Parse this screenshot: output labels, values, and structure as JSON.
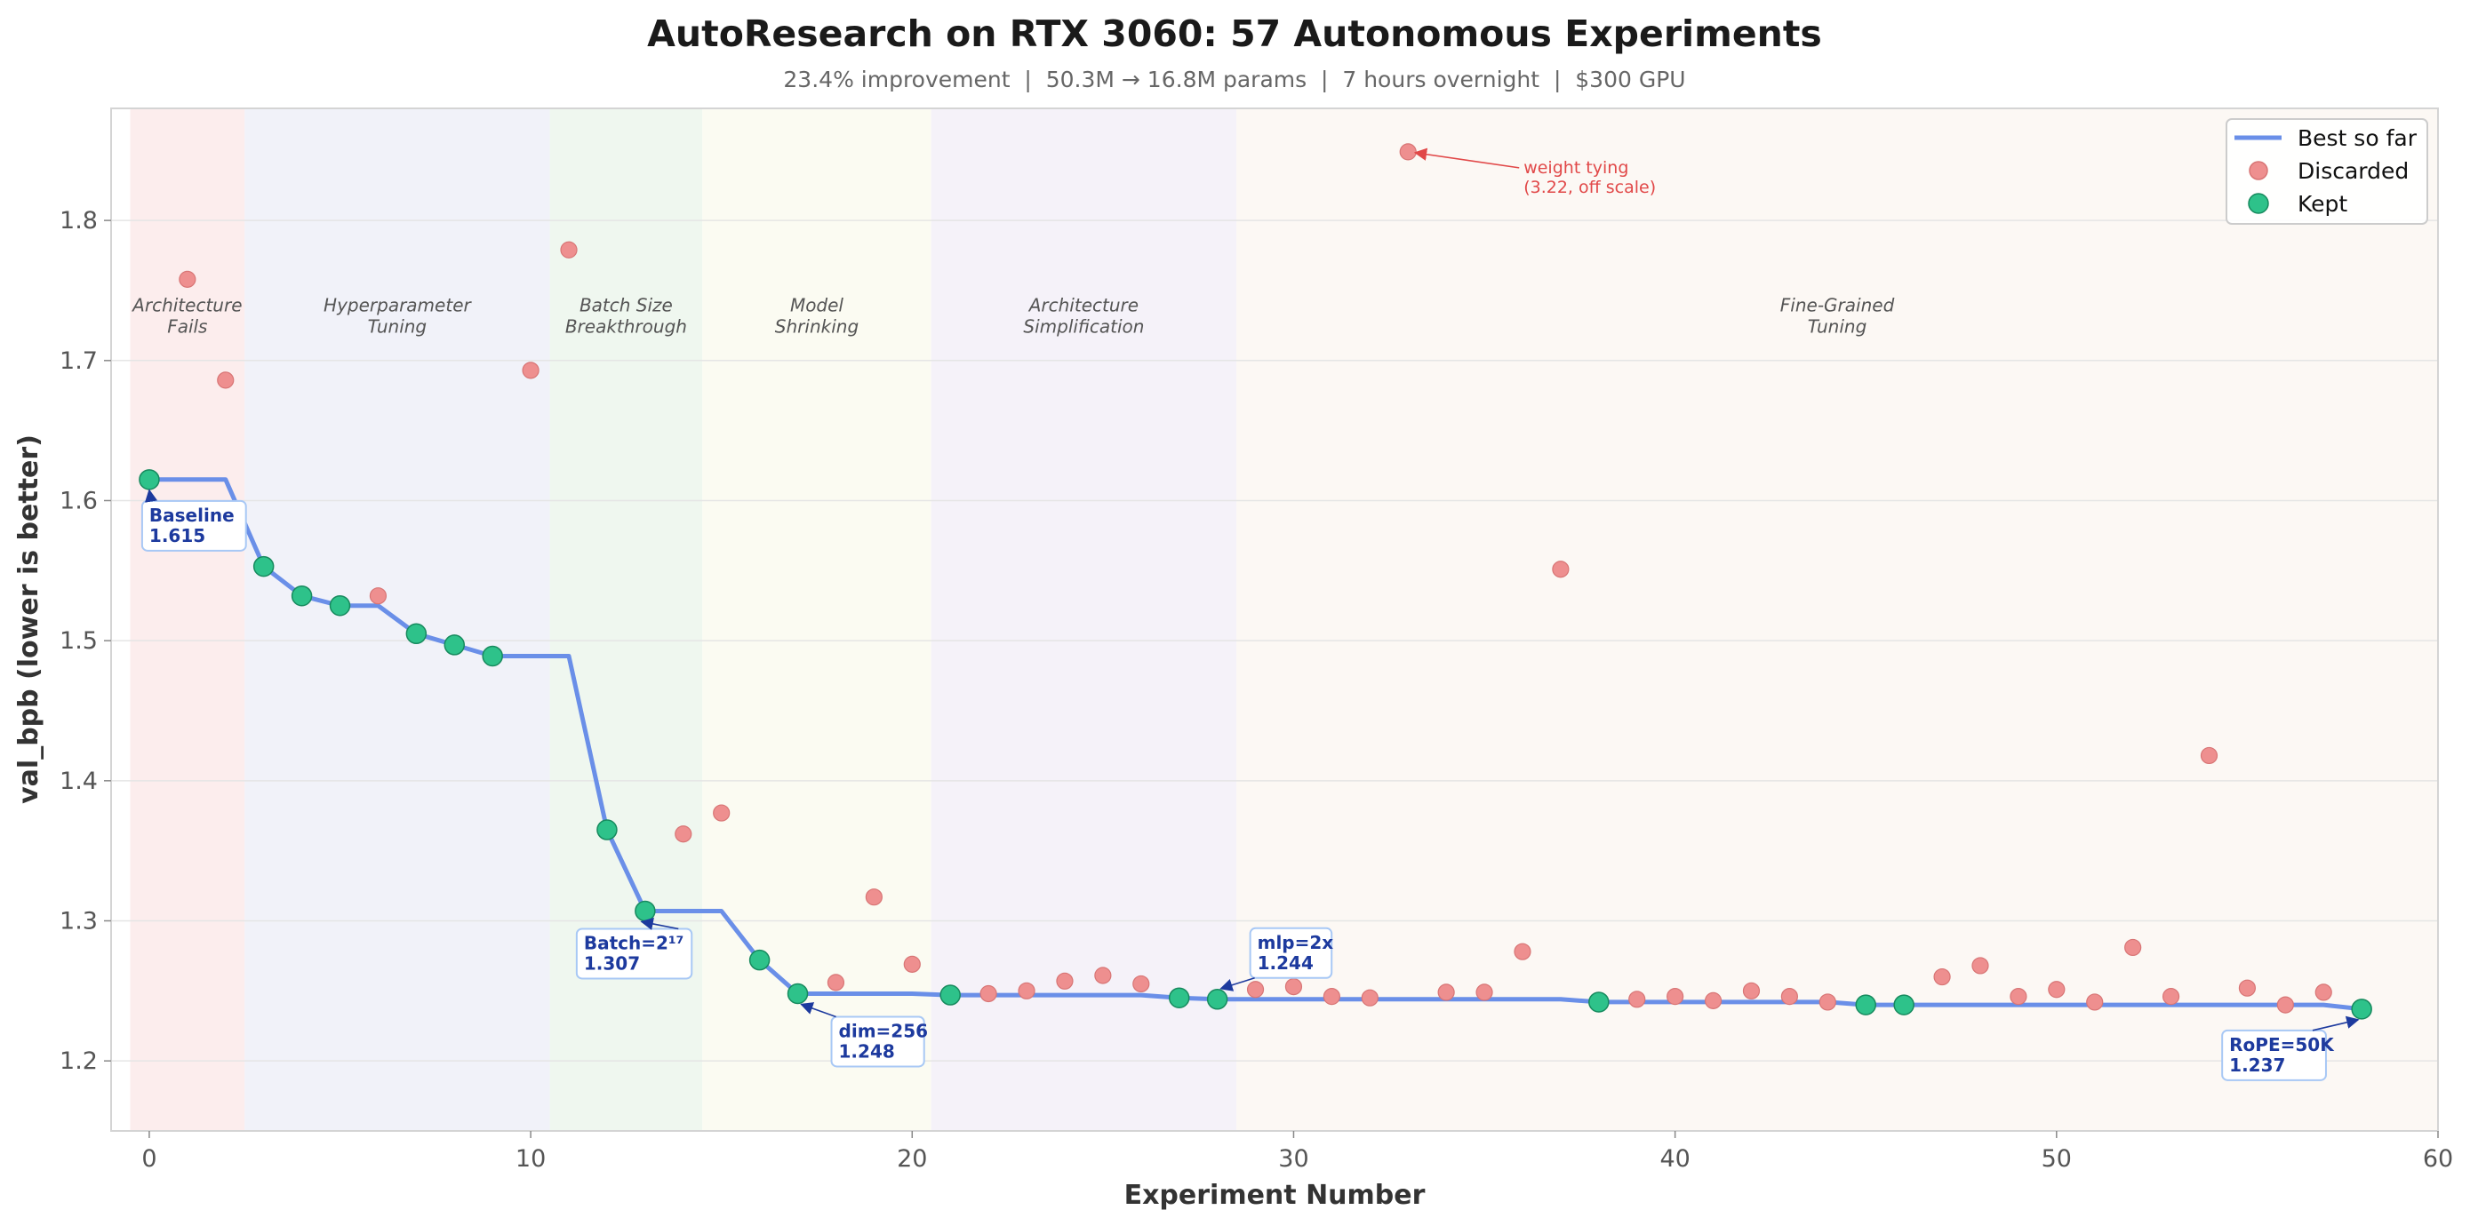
{
  "colors": {
    "best_line": "#6a8fe8",
    "discarded": "#ee8f8f",
    "discarded_edge": "#d87575",
    "kept": "#2ec28a",
    "kept_edge": "#178a5e",
    "callout": "#1d3a9e",
    "callout_border": "#a8c8f5",
    "off_scale_note": "#e14848"
  },
  "chart_data": {
    "type": "scatter",
    "title": "AutoResearch on RTX 3060: 57 Autonomous Experiments",
    "subtitle": "23.4% improvement  |  50.3M → 16.8M params  |  7 hours overnight  |  $300 GPU",
    "xlabel": "Experiment Number",
    "ylabel": "val_bpb (lower is better)",
    "xlim": [
      -1,
      60
    ],
    "ylim": [
      1.15,
      1.88
    ],
    "xticks": [
      0,
      10,
      20,
      30,
      40,
      50,
      60
    ],
    "yticks": [
      1.2,
      1.3,
      1.4,
      1.5,
      1.6,
      1.7,
      1.8
    ],
    "grid": "horizontal",
    "legend_position": "top-right",
    "regions": [
      {
        "label": "Architecture\nFails",
        "x_start": -0.5,
        "x_end": 2.5,
        "color": "#fbeaea"
      },
      {
        "label": "Hyperparameter\nTuning",
        "x_start": 2.5,
        "x_end": 10.5,
        "color": "#eef0f8"
      },
      {
        "label": "Batch Size\nBreakthrough",
        "x_start": 10.5,
        "x_end": 14.5,
        "color": "#ecf6ec"
      },
      {
        "label": "Model\nShrinking",
        "x_start": 14.5,
        "x_end": 20.5,
        "color": "#fafaf0"
      },
      {
        "label": "Architecture\nSimplification",
        "x_start": 20.5,
        "x_end": 28.5,
        "color": "#f3f0f8"
      },
      {
        "label": "Fine-Grained\nTuning",
        "x_start": 28.5,
        "x_end": 60,
        "color": "#fbf7f2"
      }
    ],
    "series": [
      {
        "name": "Best so far",
        "type": "line",
        "x": [
          0,
          1,
          2,
          3,
          4,
          5,
          6,
          7,
          8,
          9,
          10,
          11,
          12,
          13,
          14,
          15,
          16,
          17,
          18,
          19,
          20,
          21,
          22,
          23,
          24,
          25,
          26,
          27,
          28,
          29,
          30,
          31,
          32,
          33,
          34,
          35,
          36,
          37,
          38,
          39,
          40,
          41,
          42,
          43,
          44,
          45,
          46,
          47,
          48,
          49,
          50,
          51,
          52,
          53,
          54,
          55,
          56,
          57,
          58
        ],
        "y": [
          1.615,
          1.615,
          1.615,
          1.553,
          1.532,
          1.525,
          1.525,
          1.505,
          1.497,
          1.489,
          1.489,
          1.489,
          1.365,
          1.307,
          1.307,
          1.307,
          1.272,
          1.248,
          1.248,
          1.248,
          1.248,
          1.247,
          1.247,
          1.247,
          1.247,
          1.247,
          1.247,
          1.245,
          1.244,
          1.244,
          1.244,
          1.244,
          1.244,
          1.244,
          1.244,
          1.244,
          1.244,
          1.244,
          1.242,
          1.242,
          1.242,
          1.242,
          1.242,
          1.242,
          1.242,
          1.24,
          1.24,
          1.24,
          1.24,
          1.24,
          1.24,
          1.24,
          1.24,
          1.24,
          1.24,
          1.24,
          1.24,
          1.24,
          1.237
        ]
      },
      {
        "name": "Discarded",
        "type": "scatter",
        "x": [
          1,
          2,
          6,
          10,
          11,
          14,
          15,
          18,
          19,
          20,
          22,
          23,
          24,
          25,
          26,
          29,
          30,
          31,
          32,
          33,
          34,
          35,
          36,
          37,
          39,
          40,
          41,
          42,
          43,
          44,
          47,
          48,
          49,
          50,
          51,
          52,
          53,
          54,
          55,
          56,
          57
        ],
        "y": [
          1.758,
          1.686,
          1.532,
          1.693,
          1.779,
          1.362,
          1.377,
          1.256,
          1.317,
          1.269,
          1.248,
          1.25,
          1.257,
          1.261,
          1.255,
          1.251,
          1.253,
          1.246,
          1.245,
          1.849,
          1.249,
          1.249,
          1.278,
          1.551,
          1.244,
          1.246,
          1.243,
          1.25,
          1.246,
          1.242,
          1.26,
          1.268,
          1.246,
          1.251,
          1.242,
          1.281,
          1.246,
          1.418,
          1.252,
          1.24,
          1.249
        ]
      },
      {
        "name": "Kept",
        "type": "scatter",
        "x": [
          0,
          3,
          4,
          5,
          7,
          8,
          9,
          12,
          13,
          16,
          17,
          21,
          27,
          28,
          38,
          45,
          46,
          58
        ],
        "y": [
          1.615,
          1.553,
          1.532,
          1.525,
          1.505,
          1.497,
          1.489,
          1.365,
          1.307,
          1.272,
          1.248,
          1.247,
          1.245,
          1.244,
          1.242,
          1.24,
          1.24,
          1.237
        ]
      }
    ],
    "callouts": [
      {
        "line1": "Baseline",
        "line2": "1.615",
        "x": 0,
        "y": 1.615
      },
      {
        "line1": "Batch=2¹⁷",
        "line2": "1.307",
        "x": 13,
        "y": 1.307
      },
      {
        "line1": "dim=256",
        "line2": "1.248",
        "x": 17,
        "y": 1.248
      },
      {
        "line1": "mlp=2x",
        "line2": "1.244",
        "x": 28,
        "y": 1.244
      },
      {
        "line1": "RoPE=50K",
        "line2": "1.237",
        "x": 58,
        "y": 1.237
      }
    ],
    "off_scale_note": {
      "line1": "weight tying",
      "line2": "(3.22, off scale)",
      "x": 33,
      "y": 1.849
    }
  }
}
